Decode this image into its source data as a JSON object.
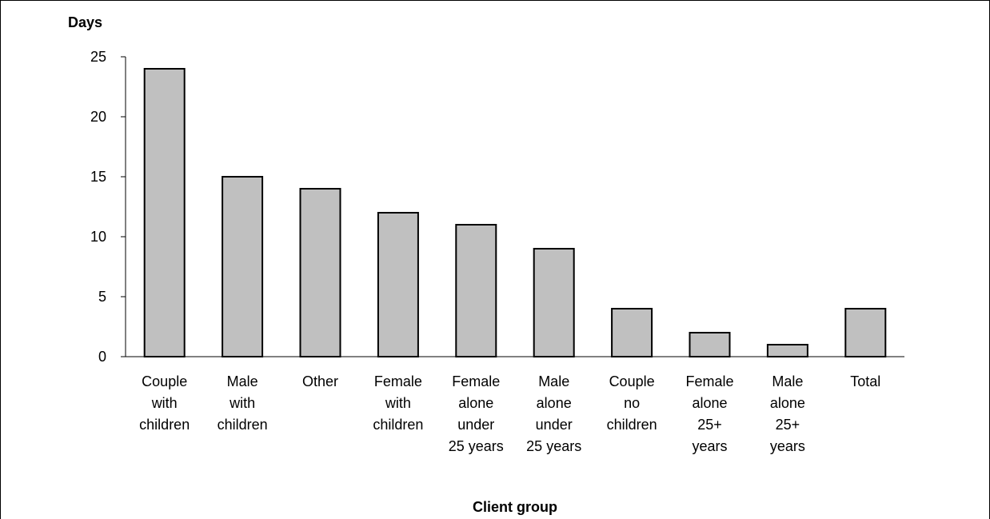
{
  "chart_data": {
    "type": "bar",
    "ylabel": "Days",
    "xlabel": "Client group",
    "categories": [
      [
        "Couple",
        "with",
        "children"
      ],
      [
        "Male",
        "with",
        "children"
      ],
      [
        "Other"
      ],
      [
        "Female",
        "with",
        "children"
      ],
      [
        "Female",
        "alone",
        "under",
        "25 years"
      ],
      [
        "Male",
        "alone",
        "under",
        "25 years"
      ],
      [
        "Couple",
        "no",
        "children"
      ],
      [
        "Female",
        "alone",
        "25+",
        "years"
      ],
      [
        "Male",
        "alone",
        "25+",
        "years"
      ],
      [
        "Total"
      ]
    ],
    "values": [
      24,
      15,
      14,
      12,
      11,
      9,
      4,
      2,
      1,
      4
    ],
    "ylim": [
      0,
      25
    ],
    "yticks": [
      0,
      5,
      10,
      15,
      20,
      25
    ],
    "grid": false,
    "legend": "none",
    "colors": {
      "bar_fill": "#c0c0c0",
      "bar_stroke": "#000000",
      "axis": "#000000"
    }
  }
}
